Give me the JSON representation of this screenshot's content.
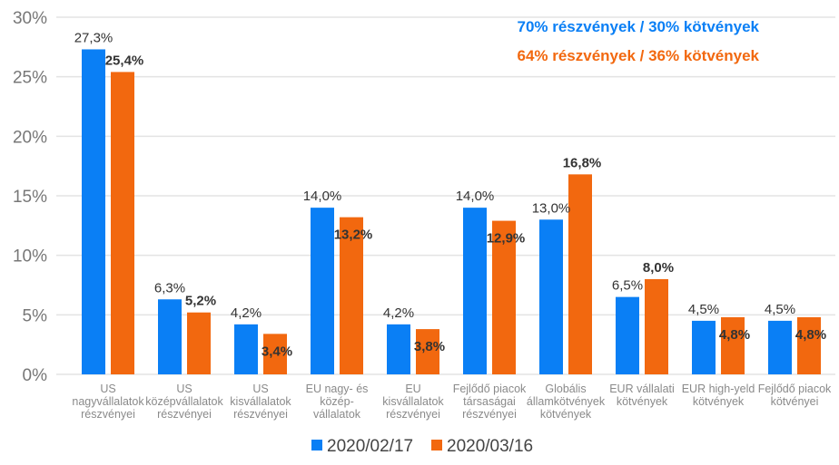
{
  "chart_data": {
    "type": "bar",
    "title": "",
    "xlabel": "",
    "ylabel": "",
    "ylim": [
      0,
      30
    ],
    "yticks": [
      "0%",
      "5%",
      "10%",
      "15%",
      "20%",
      "25%",
      "30%"
    ],
    "grid": true,
    "legend_placement": "bottom",
    "categories": [
      [
        "US",
        "nagyvállalatok",
        "részvényei"
      ],
      [
        "US",
        "középvállalatok",
        "részvényei"
      ],
      [
        "US",
        "kisvállalatok",
        "részvényei"
      ],
      [
        "EU nagy- és",
        "közép-",
        "vállalatok"
      ],
      [
        "EU",
        "kisvállalatok",
        "részvényei"
      ],
      [
        "Fejlődő piacok",
        "társaságai",
        "részvényei"
      ],
      [
        "Globális",
        "államkötvények",
        "kötvények"
      ],
      [
        "EUR vállalati",
        "kötvények"
      ],
      [
        "EUR high-yeld",
        "kötvények"
      ],
      [
        "Fejlődő piacok",
        "kötvényei"
      ]
    ],
    "series": [
      {
        "name": "2020/02/17",
        "color": "#0A7FF5",
        "values": [
          27.3,
          6.3,
          4.2,
          14.0,
          4.2,
          14.0,
          13.0,
          6.5,
          4.5,
          4.5
        ],
        "labels": [
          "27,3%",
          "6,3%",
          "4,2%",
          "14,0%",
          "4,2%",
          "14,0%",
          "13,0%",
          "6,5%",
          "4,5%",
          "4,5%"
        ]
      },
      {
        "name": "2020/03/16",
        "color": "#F2680F",
        "values": [
          25.4,
          5.2,
          3.4,
          13.2,
          3.8,
          12.9,
          16.8,
          8.0,
          4.8,
          4.8
        ],
        "labels": [
          "25,4%",
          "5,2%",
          "3,4%",
          "13,2%",
          "3,8%",
          "12,9%",
          "16,8%",
          "8,0%",
          "4,8%",
          "4,8%"
        ]
      }
    ],
    "annotations": [
      {
        "text": "70% részvények / 30% kötvények",
        "color": "#0A7FF5"
      },
      {
        "text": "64% részvények / 36% kötvények",
        "color": "#F2680F"
      }
    ]
  }
}
